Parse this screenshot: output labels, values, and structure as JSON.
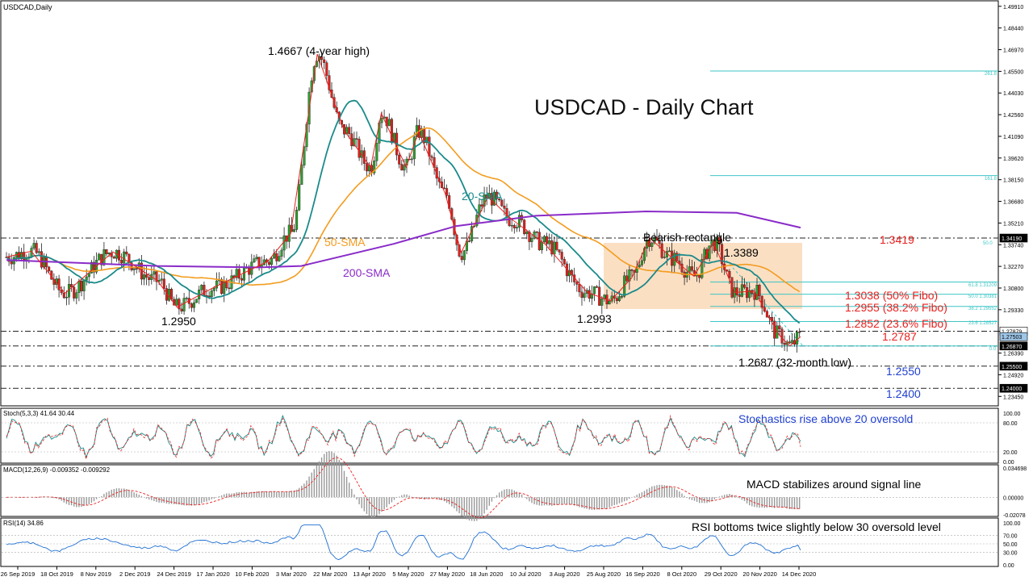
{
  "window": {
    "symbol_label": "USDCAD,Daily"
  },
  "main": {
    "title": "USDCAD - Daily Chart",
    "annotations": {
      "high": "1.4667 (4-year high)",
      "low1": "1.2950",
      "low2": "1.2993",
      "rect": "Bearish rectangle",
      "rect_top_val": "1.3389",
      "low3": "1.2687 (32-month low)",
      "sma20": "20-SMA",
      "sma50": "50-SMA",
      "sma200": "200-SMA"
    },
    "levels": [
      {
        "text": "1.3419",
        "color": "#e8211f"
      },
      {
        "text": "1.3038 (50% Fibo)",
        "color": "#e8211f"
      },
      {
        "text": "1.2955 (38.2% Fibo)",
        "color": "#e8211f"
      },
      {
        "text": "1.2852 (23.6% Fibo)",
        "color": "#e8211f"
      },
      {
        "text": "1.2787",
        "color": "#e8211f"
      },
      {
        "text": "1.2550",
        "color": "#1f3fd1"
      },
      {
        "text": "1.2400",
        "color": "#1f3fd1"
      }
    ],
    "fib_labels": [
      "261.8",
      "161.8",
      "50.0",
      "61.8 1.31209",
      "50.0 1.30381",
      "38.2 1.29552",
      "23.6 1.28527",
      "0.0"
    ],
    "price_ticks": [
      "1.49910",
      "1.48440",
      "1.46970",
      "1.45500",
      "1.44030",
      "1.42560",
      "1.41090",
      "1.39620",
      "1.38150",
      "1.36680",
      "1.35210",
      "1.33740",
      "1.32270",
      "1.30800",
      "1.29330",
      "1.27860",
      "1.26390",
      "1.24920",
      "1.23450"
    ],
    "price_tags": [
      {
        "text": "1.34190",
        "type": "dark"
      },
      {
        "text": "1.27879",
        "type": "light"
      },
      {
        "text": "1.27503",
        "type": "blue"
      },
      {
        "text": "1.26870",
        "type": "dark"
      },
      {
        "text": "1.25500",
        "type": "dark"
      },
      {
        "text": "1.24000",
        "type": "dark"
      }
    ]
  },
  "stoch": {
    "header": "Stoch(5,3,3) 41.64 30.44",
    "note": "Stochastics rise above 20 oversold",
    "ticks": [
      "100.00",
      "80.00",
      "20.00",
      "0.00"
    ],
    "current": [
      41.64,
      30.44
    ]
  },
  "macd": {
    "header": "MACD(12,26,9) -0.009352 -0.009292",
    "note": "MACD stabilizes around signal line",
    "ticks": [
      "0.034698",
      "0.00000",
      "-0.02078"
    ],
    "current": [
      -0.009352,
      -0.009292
    ]
  },
  "rsi": {
    "header": "RSI(14) 34.86",
    "note": "RSI bottoms twice slightly below 30 oversold level",
    "ticks": [
      "100.00",
      "70.00",
      "50.00",
      "30.00",
      "0.00"
    ],
    "current": 34.86
  },
  "x_axis": {
    "labels": [
      "26 Sep 2019",
      "18 Oct 2019",
      "8 Nov 2019",
      "2 Dec 2019",
      "24 Dec 2019",
      "17 Jan 2020",
      "10 Feb 2020",
      "3 Mar 2020",
      "22 Mar 2020",
      "13 Apr 2020",
      "5 May 2020",
      "27 May 2020",
      "18 Jun 2020",
      "10 Jul 2020",
      "3 Aug 2020",
      "25 Aug 2020",
      "16 Sep 2020",
      "8 Oct 2020",
      "29 Oct 2020",
      "20 Nov 2020",
      "14 Dec 2020"
    ]
  },
  "colors": {
    "sma20": "#1b8a8a",
    "sma50": "#f39c1f",
    "sma200": "#8a2bc8",
    "rectangle": "#fbdcbd",
    "zigzag": "#e8211f",
    "fib": "#3fc6c6",
    "bull": "#2ca02c",
    "bear": "#e0201c"
  },
  "chart_data": {
    "type": "line",
    "title": "USDCAD - Daily Chart",
    "x_start": "2019-09-26",
    "x_end": "2020-12-16",
    "ylim": [
      1.233,
      1.499
    ],
    "pivots": [
      {
        "date": "2019-09-26",
        "price": 1.329
      },
      {
        "date": "2019-10-10",
        "price": 1.333
      },
      {
        "date": "2019-10-29",
        "price": 1.3045
      },
      {
        "date": "2019-11-25",
        "price": 1.3325
      },
      {
        "date": "2019-12-20",
        "price": 1.313
      },
      {
        "date": "2019-12-31",
        "price": 1.295
      },
      {
        "date": "2020-01-20",
        "price": 1.308
      },
      {
        "date": "2020-02-20",
        "price": 1.326
      },
      {
        "date": "2020-03-04",
        "price": 1.345
      },
      {
        "date": "2020-03-19",
        "price": 1.4667
      },
      {
        "date": "2020-04-03",
        "price": 1.415
      },
      {
        "date": "2020-04-18",
        "price": 1.39
      },
      {
        "date": "2020-04-24",
        "price": 1.4265
      },
      {
        "date": "2020-05-08",
        "price": 1.39
      },
      {
        "date": "2020-05-15",
        "price": 1.414
      },
      {
        "date": "2020-05-30",
        "price": 1.372
      },
      {
        "date": "2020-06-08",
        "price": 1.332
      },
      {
        "date": "2020-06-23",
        "price": 1.37
      },
      {
        "date": "2020-07-06",
        "price": 1.355
      },
      {
        "date": "2020-07-25",
        "price": 1.338
      },
      {
        "date": "2020-08-18",
        "price": 1.305
      },
      {
        "date": "2020-08-31",
        "price": 1.2993
      },
      {
        "date": "2020-09-12",
        "price": 1.315
      },
      {
        "date": "2020-09-22",
        "price": 1.342
      },
      {
        "date": "2020-10-05",
        "price": 1.328
      },
      {
        "date": "2020-10-17",
        "price": 1.316
      },
      {
        "date": "2020-10-28",
        "price": 1.3389
      },
      {
        "date": "2020-11-09",
        "price": 1.305
      },
      {
        "date": "2020-11-20",
        "price": 1.306
      },
      {
        "date": "2020-12-04",
        "price": 1.276
      },
      {
        "date": "2020-12-10",
        "price": 1.2687
      },
      {
        "date": "2020-12-16",
        "price": 1.275
      }
    ],
    "sma200": [
      {
        "date": "2019-09-26",
        "price": 1.327
      },
      {
        "date": "2019-12-20",
        "price": 1.323
      },
      {
        "date": "2020-02-15",
        "price": 1.322
      },
      {
        "date": "2020-03-10",
        "price": 1.323
      },
      {
        "date": "2020-05-01",
        "price": 1.338
      },
      {
        "date": "2020-06-05",
        "price": 1.35
      },
      {
        "date": "2020-07-20",
        "price": 1.357
      },
      {
        "date": "2020-09-20",
        "price": 1.36
      },
      {
        "date": "2020-11-10",
        "price": 1.359
      },
      {
        "date": "2020-12-16",
        "price": 1.349
      }
    ],
    "levels": [
      1.3419,
      1.3038,
      1.2955,
      1.2852,
      1.2787,
      1.255,
      1.24
    ]
  }
}
